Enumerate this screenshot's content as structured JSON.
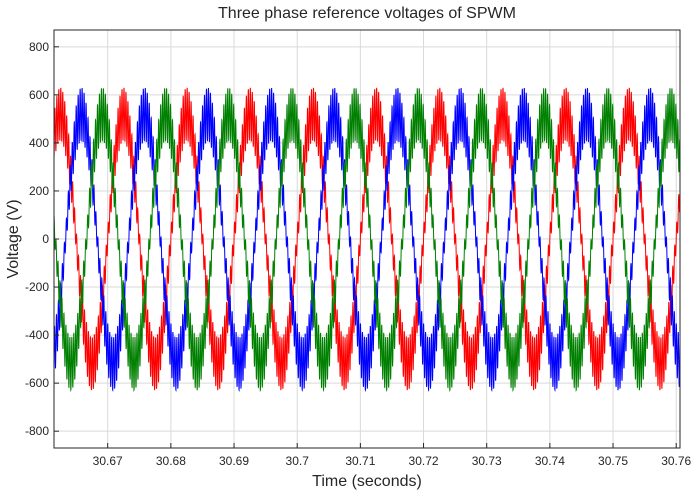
{
  "chart_data": {
    "type": "line",
    "title": "Three phase reference voltages of SPWM",
    "xlabel": "Time (seconds)",
    "ylabel": "Voltage (V)",
    "xlim": [
      30.6615,
      30.7606
    ],
    "ylim": [
      -870,
      870
    ],
    "xticks": [
      30.67,
      30.68,
      30.69,
      30.7,
      30.71,
      30.72,
      30.73,
      30.74,
      30.75,
      30.76
    ],
    "xtick_labels": [
      "30.67",
      "30.68",
      "30.69",
      "30.7",
      "30.71",
      "30.72",
      "30.73",
      "30.74",
      "30.75",
      "30.76"
    ],
    "yticks": [
      -800,
      -600,
      -400,
      -200,
      0,
      200,
      400,
      600,
      800
    ],
    "ytick_labels": [
      "-800",
      "-600",
      "-400",
      "-200",
      "0",
      "200",
      "400",
      "600",
      "800"
    ],
    "grid": true,
    "legend": "none",
    "series": [
      {
        "color": "#ff0000",
        "amplitude": 520,
        "ripple": 110,
        "frequency_hz": 100,
        "phase_deg": 0,
        "x": [
          30.6625,
          30.665,
          30.6675,
          30.67,
          30.6725,
          30.675,
          30.6775,
          30.68
        ],
        "y": [
          520,
          0,
          -520,
          0,
          520,
          0,
          -520,
          0
        ]
      },
      {
        "color": "#0000ff",
        "amplitude": 520,
        "ripple": 110,
        "frequency_hz": 100,
        "phase_deg": -120,
        "x": [
          30.6625,
          30.6658,
          30.6692,
          30.6725,
          30.6758,
          30.6792
        ],
        "y": [
          -450,
          520,
          0,
          -520,
          520,
          0
        ]
      },
      {
        "color": "#008000",
        "amplitude": 520,
        "ripple": 110,
        "frequency_hz": 100,
        "phase_deg": 120,
        "x": [
          30.6625,
          30.6642,
          30.6675,
          30.6708,
          30.6742
        ],
        "y": [
          100,
          -520,
          520,
          -520,
          520
        ]
      }
    ]
  },
  "colors": {
    "axis": "#262626",
    "grid": "#d9d9d9",
    "background": "#ffffff"
  }
}
